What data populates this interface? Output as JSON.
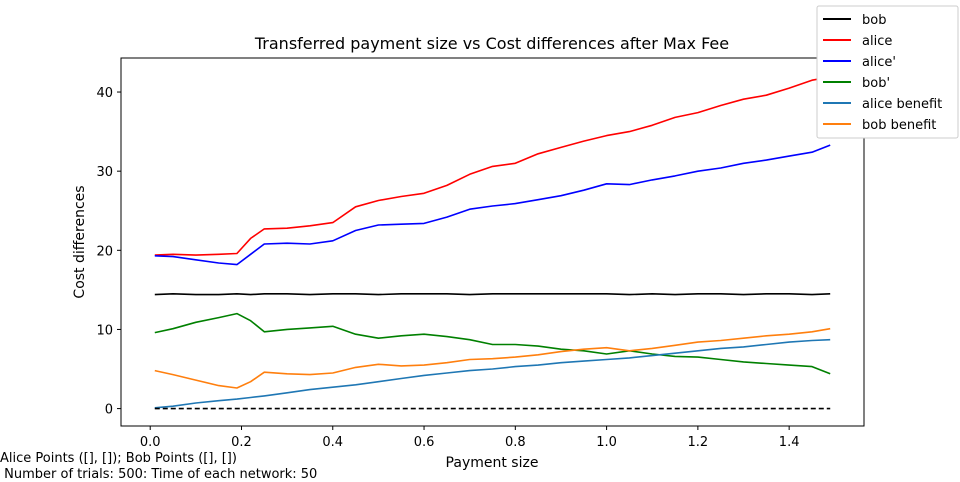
{
  "chart_data": {
    "type": "line",
    "title": "Transferred payment size vs Cost differences after Max Fee",
    "xlabel": "Payment size",
    "ylabel": "Cost differences",
    "xlim": [
      -0.064,
      1.564
    ],
    "ylim": [
      -2.2,
      44.3
    ],
    "xticks": [
      "0.0",
      "0.2",
      "0.4",
      "0.6",
      "0.8",
      "1.0",
      "1.2",
      "1.4"
    ],
    "xtick_values": [
      0.0,
      0.2,
      0.4,
      0.6,
      0.8,
      1.0,
      1.2,
      1.4
    ],
    "yticks": [
      "0",
      "10",
      "20",
      "30",
      "40"
    ],
    "ytick_values": [
      0,
      10,
      20,
      30,
      40
    ],
    "legend_position": "top-right",
    "grid": false,
    "x": [
      0.01,
      0.05,
      0.1,
      0.15,
      0.19,
      0.22,
      0.25,
      0.3,
      0.35,
      0.4,
      0.45,
      0.5,
      0.55,
      0.6,
      0.65,
      0.7,
      0.75,
      0.8,
      0.85,
      0.9,
      0.95,
      1.0,
      1.05,
      1.1,
      1.15,
      1.2,
      1.25,
      1.3,
      1.35,
      1.4,
      1.45,
      1.49
    ],
    "series": [
      {
        "name": "bob",
        "color": "#000000",
        "values": [
          14.4,
          14.5,
          14.4,
          14.4,
          14.5,
          14.4,
          14.5,
          14.5,
          14.4,
          14.5,
          14.5,
          14.4,
          14.5,
          14.5,
          14.5,
          14.4,
          14.5,
          14.5,
          14.5,
          14.5,
          14.5,
          14.5,
          14.4,
          14.5,
          14.4,
          14.5,
          14.5,
          14.4,
          14.5,
          14.5,
          14.4,
          14.5
        ]
      },
      {
        "name": "alice",
        "color": "#ff0000",
        "values": [
          19.4,
          19.5,
          19.4,
          19.5,
          19.6,
          21.5,
          22.7,
          22.8,
          23.1,
          23.5,
          25.5,
          26.3,
          26.8,
          27.2,
          28.2,
          29.6,
          30.6,
          31.0,
          32.2,
          33.0,
          33.8,
          34.5,
          35.0,
          35.8,
          36.8,
          37.4,
          38.3,
          39.1,
          39.6,
          40.5,
          41.5,
          41.9
        ]
      },
      {
        "name": "alice'",
        "color": "#0000ff",
        "values": [
          19.3,
          19.2,
          18.8,
          18.4,
          18.2,
          19.5,
          20.8,
          20.9,
          20.8,
          21.2,
          22.5,
          23.2,
          23.3,
          23.4,
          24.2,
          25.2,
          25.6,
          25.9,
          26.4,
          26.9,
          27.6,
          28.4,
          28.3,
          28.9,
          29.4,
          30.0,
          30.4,
          31.0,
          31.4,
          31.9,
          32.4,
          33.3
        ]
      },
      {
        "name": "bob'",
        "color": "#008000",
        "values": [
          9.6,
          10.1,
          10.9,
          11.5,
          12.0,
          11.1,
          9.7,
          10.0,
          10.2,
          10.4,
          9.4,
          8.9,
          9.2,
          9.4,
          9.1,
          8.7,
          8.1,
          8.1,
          7.9,
          7.5,
          7.3,
          6.9,
          7.3,
          6.9,
          6.6,
          6.5,
          6.2,
          5.9,
          5.7,
          5.5,
          5.3,
          4.4
        ]
      },
      {
        "name": "alice benefit",
        "color": "#1f77b4",
        "values": [
          0.1,
          0.3,
          0.7,
          1.0,
          1.2,
          1.4,
          1.6,
          2.0,
          2.4,
          2.7,
          3.0,
          3.4,
          3.8,
          4.2,
          4.5,
          4.8,
          5.0,
          5.3,
          5.5,
          5.8,
          6.0,
          6.2,
          6.4,
          6.7,
          7.0,
          7.3,
          7.6,
          7.8,
          8.1,
          8.4,
          8.6,
          8.7
        ]
      },
      {
        "name": "bob benefit",
        "color": "#ff7f0e",
        "values": [
          4.8,
          4.3,
          3.6,
          2.9,
          2.6,
          3.4,
          4.6,
          4.4,
          4.3,
          4.5,
          5.2,
          5.6,
          5.4,
          5.5,
          5.8,
          6.2,
          6.3,
          6.5,
          6.8,
          7.2,
          7.5,
          7.7,
          7.3,
          7.6,
          8.0,
          8.4,
          8.6,
          8.9,
          9.2,
          9.4,
          9.7,
          10.1
        ]
      }
    ],
    "reference_line": {
      "y": 0,
      "style": "dashed",
      "color": "#000000"
    }
  },
  "footnote": {
    "line1": "Alice Points ([], []); Bob Points ([], [])",
    "line2": " Number of trials: 500: Time of each network: 50"
  }
}
